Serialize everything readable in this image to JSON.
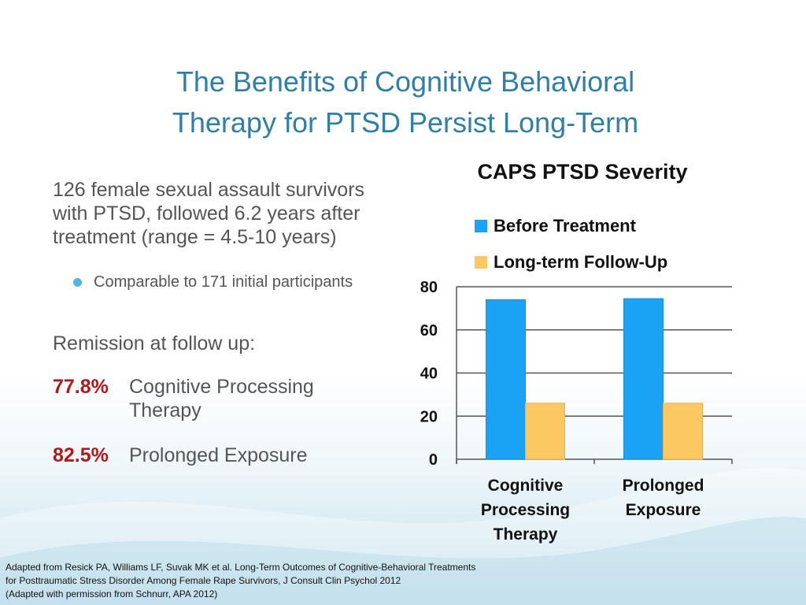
{
  "slide": {
    "title_line1": "The Benefits of Cognitive Behavioral",
    "title_line2": "Therapy for PTSD Persist Long-Term",
    "intro": "126 female sexual assault survivors with PTSD, followed 6.2 years after treatment (range = 4.5-10 years)",
    "bullet": "Comparable to 171 initial participants",
    "remission_heading": "Remission at follow up:",
    "remission": [
      {
        "percent": "77.8%",
        "label": "Cognitive Processing Therapy"
      },
      {
        "percent": "82.5%",
        "label": "Prolonged Exposure"
      }
    ],
    "footnote": [
      "Adapted from Resick PA, Williams LF, Suvak MK et al. Long-Term Outcomes of Cognitive-Behavioral Treatments",
      "for Posttraumatic Stress Disorder Among Female Rape Survivors, J Consult Clin Psychol 2012",
      "(Adapted with permission from Schnurr, APA 2012)"
    ]
  },
  "chart_data": {
    "type": "bar",
    "title": "CAPS PTSD Severity",
    "categories": [
      [
        "Cognitive",
        "Processing",
        "Therapy"
      ],
      [
        "Prolonged",
        "Exposure"
      ]
    ],
    "series": [
      {
        "name": "Before Treatment",
        "color": "#1aa3f5",
        "values": [
          74,
          74.5
        ]
      },
      {
        "name": "Long-term Follow-Up",
        "color": "#fcc862",
        "values": [
          26,
          26
        ]
      }
    ],
    "ylim": [
      0,
      80
    ],
    "yticks": [
      0,
      20,
      40,
      60,
      80
    ],
    "grid": true,
    "legend": "top"
  }
}
